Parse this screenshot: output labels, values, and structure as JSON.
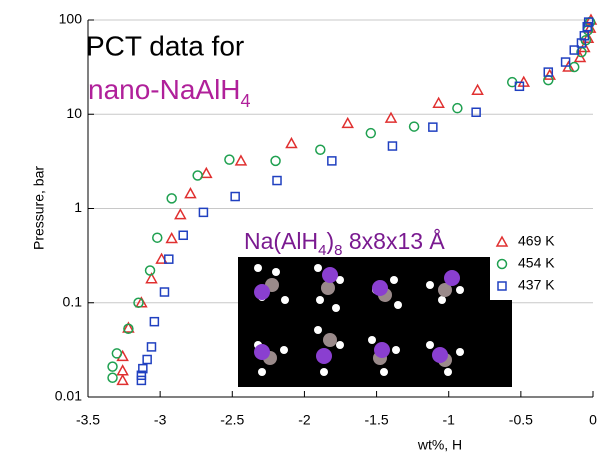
{
  "chart_data": {
    "type": "scatter",
    "title": "PCT data for",
    "subtitle_parts": [
      "nano-NaAlH",
      "4"
    ],
    "inset_label_parts": [
      "Na(AlH",
      "4",
      ")",
      "8",
      " 8x8x13 Å"
    ],
    "x_label": "wt%, H",
    "y_label": "Pressure, bar",
    "xlim": [
      -3.5,
      0
    ],
    "xticks": [
      -3.5,
      -3,
      -2.5,
      -2,
      -1.5,
      -1,
      -0.5,
      0
    ],
    "ylim": [
      0.01,
      100
    ],
    "yticks": [
      0.01,
      0.1,
      1,
      10,
      100
    ],
    "log_y": true,
    "grid": true,
    "legend": "right",
    "series": [
      {
        "name": "469 K",
        "color": "#e03030",
        "marker": "triangle",
        "x": [
          -3.26,
          -3.26,
          -3.26,
          -3.22,
          -3.13,
          -3.06,
          -2.99,
          -2.92,
          -2.86,
          -2.79,
          -2.68,
          -2.44,
          -2.09,
          -1.7,
          -1.4,
          -1.07,
          -0.8,
          -0.48,
          -0.3,
          -0.17,
          -0.09,
          -0.06,
          -0.035,
          -0.02,
          -0.014
        ],
        "values": [
          0.015,
          0.019,
          0.027,
          0.054,
          0.1,
          0.18,
          0.29,
          0.48,
          0.86,
          1.44,
          2.36,
          3.2,
          4.9,
          8.0,
          9.1,
          13.1,
          18,
          21.9,
          26,
          31.7,
          40,
          51,
          64,
          82,
          100
        ]
      },
      {
        "name": "454 K",
        "color": "#1fa050",
        "marker": "circle",
        "x": [
          -3.33,
          -3.33,
          -3.3,
          -3.22,
          -3.15,
          -3.07,
          -3.02,
          -2.92,
          -2.74,
          -2.52,
          -2.2,
          -1.89,
          -1.54,
          -1.24,
          -0.94,
          -0.56,
          -0.31,
          -0.13,
          -0.08,
          -0.05,
          -0.035,
          -0.02
        ],
        "values": [
          0.016,
          0.021,
          0.029,
          0.053,
          0.1,
          0.22,
          0.49,
          1.28,
          2.24,
          3.3,
          3.2,
          4.2,
          6.3,
          7.4,
          11.6,
          21.9,
          23,
          31.7,
          45.6,
          61,
          78,
          95
        ]
      },
      {
        "name": "437 K",
        "color": "#2040c0",
        "marker": "square",
        "x": [
          -3.13,
          -3.13,
          -3.12,
          -3.09,
          -3.06,
          -3.04,
          -2.97,
          -2.94,
          -2.84,
          -2.7,
          -2.48,
          -2.19,
          -1.81,
          -1.39,
          -1.11,
          -0.81,
          -0.51,
          -0.31,
          -0.19,
          -0.13,
          -0.08,
          -0.06,
          -0.04,
          -0.03
        ],
        "values": [
          0.015,
          0.017,
          0.02,
          0.025,
          0.034,
          0.063,
          0.13,
          0.29,
          0.52,
          0.91,
          1.34,
          1.98,
          3.2,
          4.6,
          7.3,
          10.5,
          19.8,
          28,
          35.8,
          48,
          57,
          68,
          85,
          95
        ]
      }
    ]
  }
}
